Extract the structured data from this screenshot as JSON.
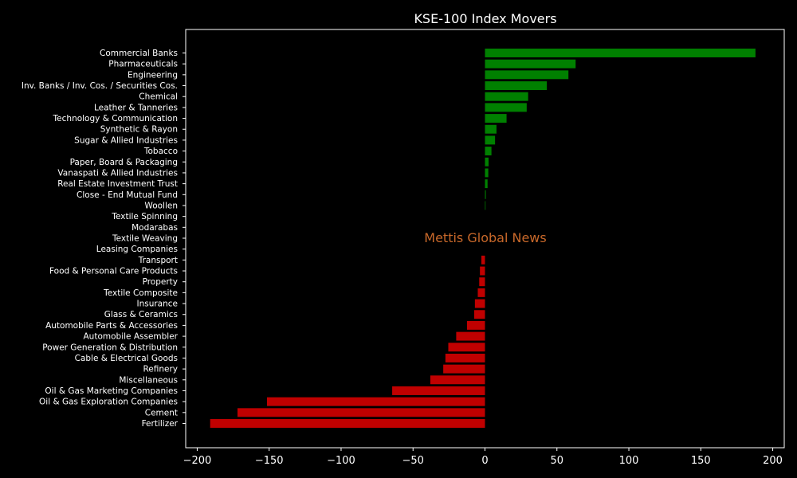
{
  "chart_data": {
    "type": "bar",
    "orientation": "horizontal",
    "title": "KSE-100 Index Movers",
    "watermark": "Mettis Global News",
    "xlabel": "",
    "ylabel": "",
    "xlim": [
      -208,
      208
    ],
    "xticks": [
      -200,
      -150,
      -100,
      -50,
      0,
      50,
      100,
      150,
      200
    ],
    "grid": false,
    "colors": {
      "positive": "#008000",
      "negative": "#c00000",
      "background": "#000000",
      "text": "#ffffff",
      "watermark": "#c8682a"
    },
    "categories": [
      "Commercial Banks",
      "Pharmaceuticals",
      "Engineering",
      "Inv. Banks / Inv. Cos. / Securities Cos.",
      "Chemical",
      "Leather & Tanneries",
      "Technology & Communication",
      "Synthetic & Rayon",
      "Sugar & Allied Industries",
      "Tobacco",
      "Paper, Board & Packaging",
      "Vanaspati & Allied Industries",
      "Real Estate Investment Trust",
      "Close - End Mutual Fund",
      "Woollen",
      "Textile Spinning",
      "Modarabas",
      "Textile Weaving",
      "Leasing Companies",
      "Transport",
      "Food & Personal Care Products",
      "Property",
      "Textile Composite",
      "Insurance",
      "Glass & Ceramics",
      "Automobile Parts & Accessories",
      "Automobile Assembler",
      "Power Generation & Distribution",
      "Cable & Electrical Goods",
      "Refinery",
      "Miscellaneous",
      "Oil & Gas Marketing Companies",
      "Oil & Gas Exploration Companies",
      "Cement",
      "Fertilizer"
    ],
    "values": [
      188,
      63,
      58,
      43,
      30,
      29,
      15,
      8,
      7,
      4.5,
      2.5,
      2.3,
      1.8,
      0.6,
      0.4,
      0,
      0,
      0,
      0,
      -2.5,
      -3.5,
      -4,
      -5,
      -7,
      -7.5,
      -12.5,
      -20,
      -25.5,
      -27.5,
      -29,
      -38,
      -64.5,
      -151.5,
      -172,
      -191
    ]
  }
}
